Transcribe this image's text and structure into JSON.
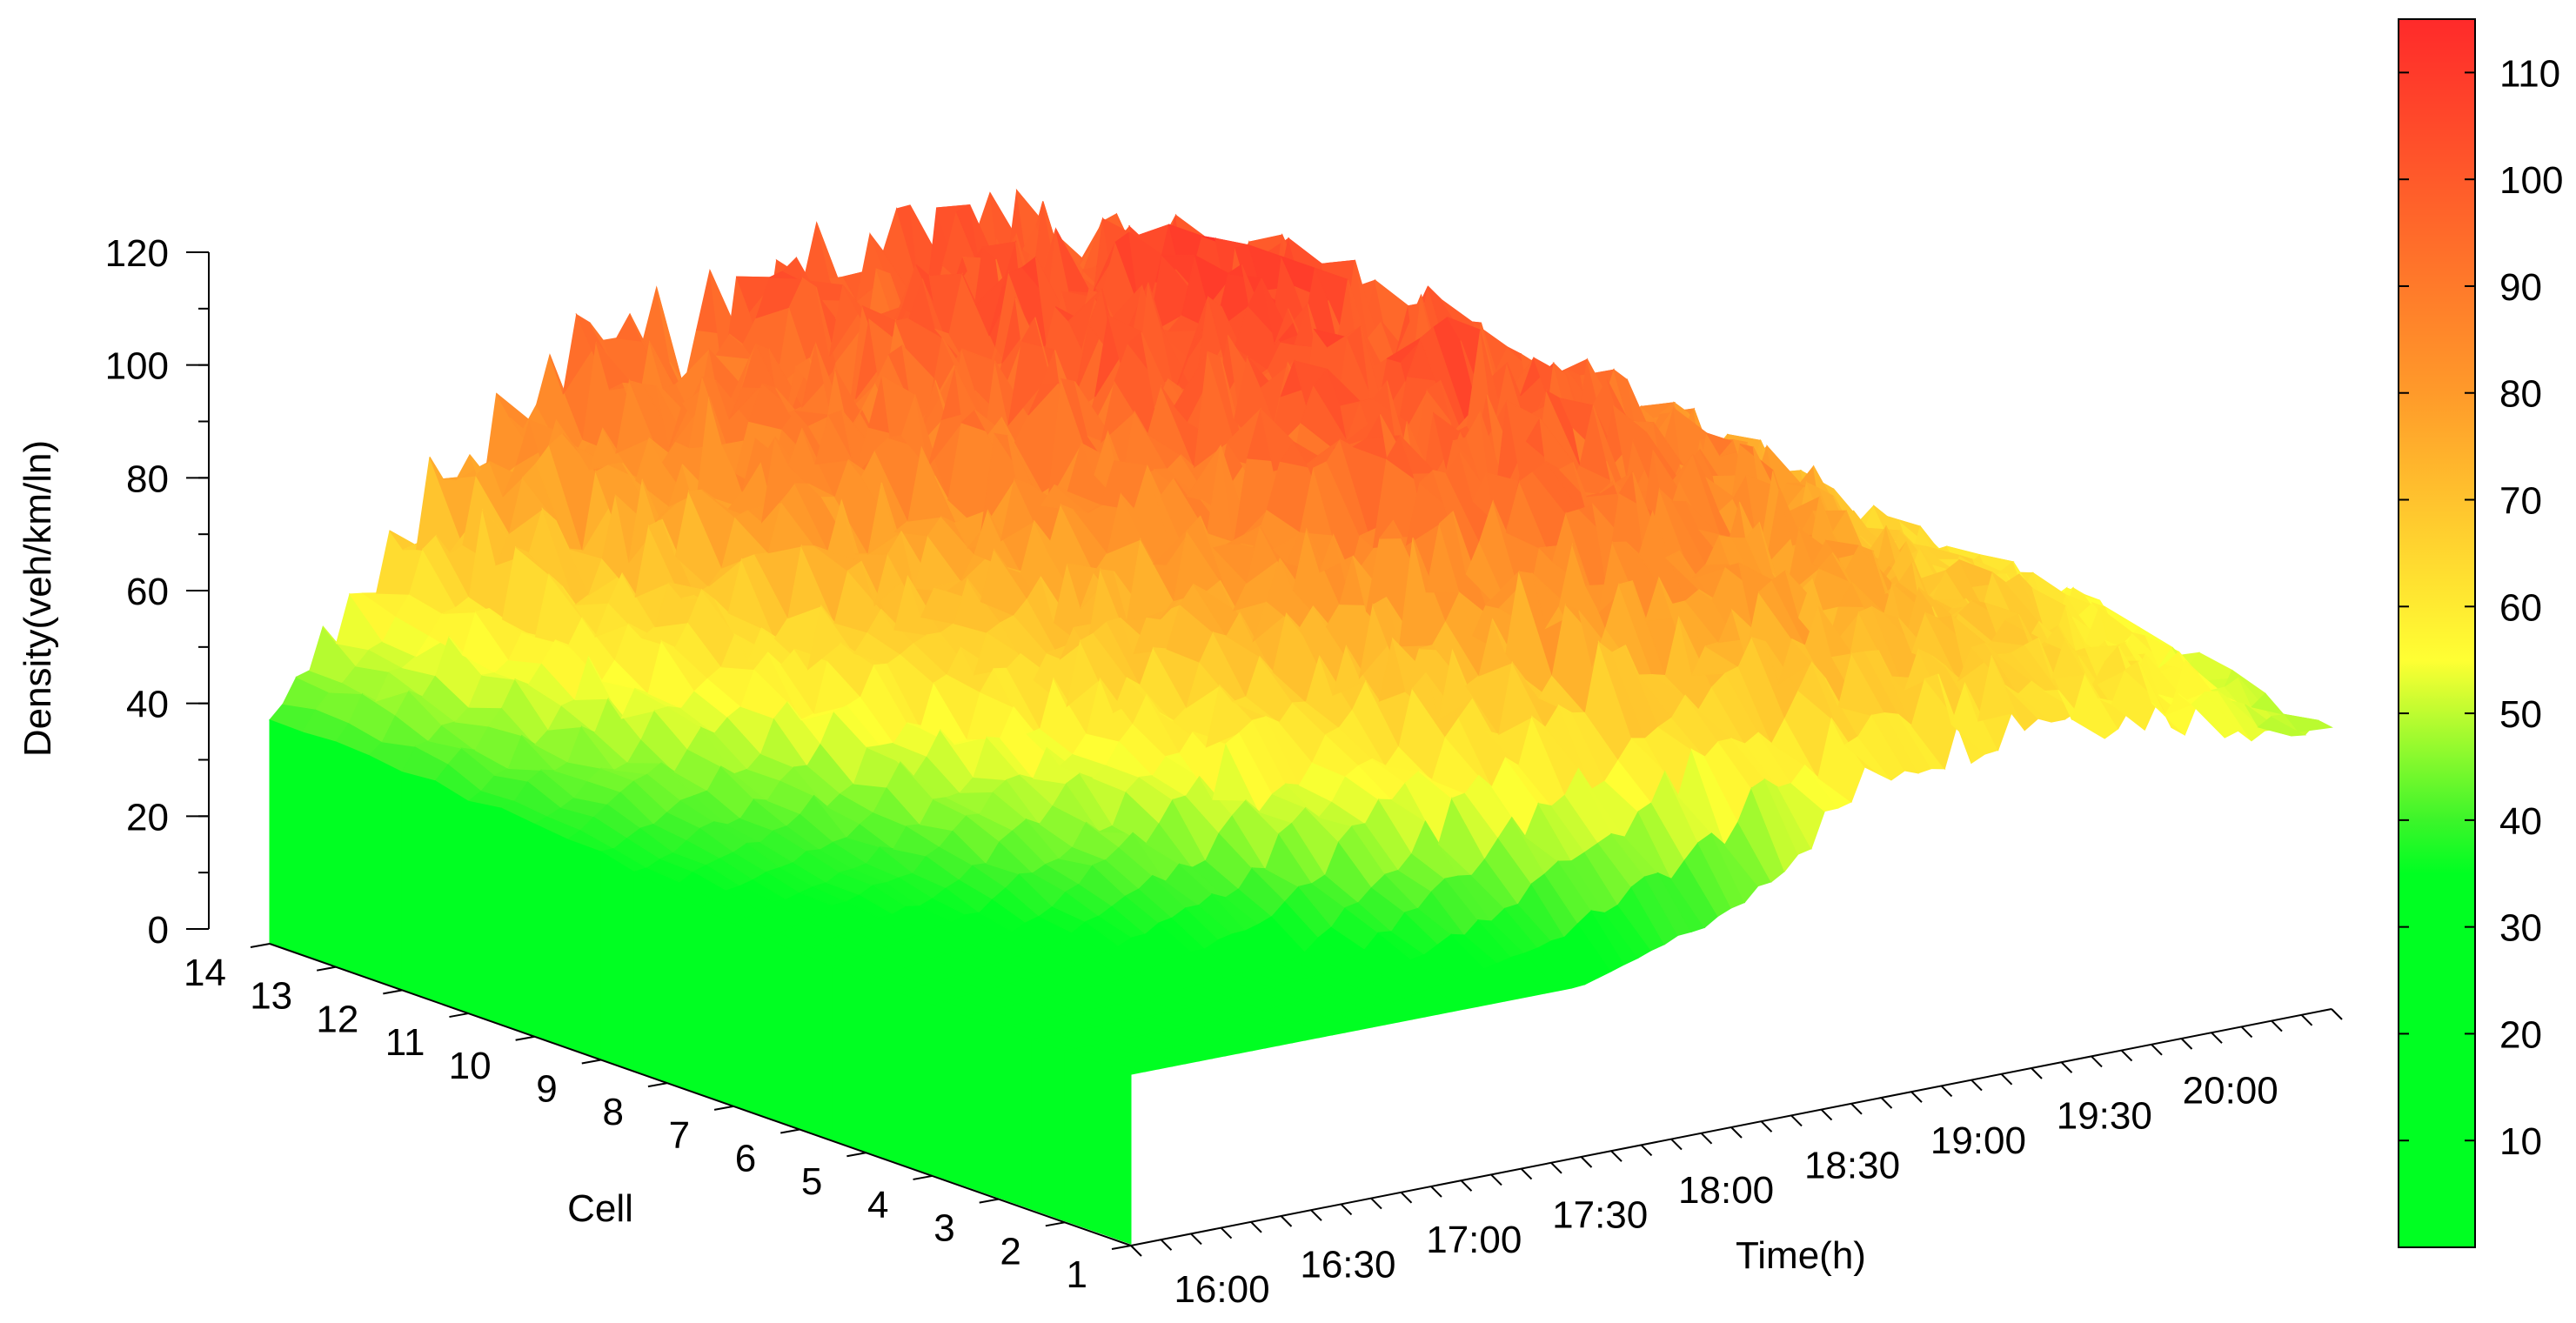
{
  "chart_data": {
    "type": "surface3d",
    "zlabel": "Density(veh/km/ln)",
    "xlabel": "Time(h)",
    "ylabel": "Cell",
    "zlim": [
      0,
      120
    ],
    "z_ticks": [
      "0",
      "20",
      "40",
      "60",
      "80",
      "100",
      "120"
    ],
    "time_ticks": [
      "16:00",
      "16:30",
      "17:00",
      "17:30",
      "18:00",
      "18:30",
      "19:00",
      "19:30",
      "20:00"
    ],
    "cell_ticks": [
      "1",
      "2",
      "3",
      "4",
      "5",
      "6",
      "7",
      "8",
      "9",
      "10",
      "11",
      "12",
      "13",
      "14"
    ],
    "colorbar": {
      "min": 0,
      "max": 115,
      "ticks": [
        "10",
        "20",
        "30",
        "40",
        "50",
        "60",
        "70",
        "80",
        "90",
        "100",
        "110"
      ],
      "colors": [
        "#00ff22",
        "#00ff22",
        "#00ff22",
        "#3cf52a",
        "#ffff33",
        "#ff9a2a",
        "#ff2a2a"
      ],
      "color_stops": [
        0,
        30,
        35,
        40,
        55,
        80,
        115
      ]
    },
    "grid": false,
    "surface_samples": {
      "times": [
        "16:00",
        "16:30",
        "17:00",
        "17:30",
        "18:00",
        "18:30",
        "19:00",
        "19:30",
        "20:00"
      ],
      "cells": [
        "1",
        "3",
        "5",
        "7",
        "9",
        "11",
        "13",
        "14"
      ],
      "density": [
        [
          30,
          30,
          30,
          30,
          38,
          58,
          63,
          58,
          48
        ],
        [
          30,
          30,
          32,
          52,
          72,
          78,
          72,
          65,
          52
        ],
        [
          30,
          34,
          48,
          68,
          88,
          92,
          82,
          70,
          55
        ],
        [
          32,
          40,
          60,
          78,
          95,
          100,
          88,
          72,
          52
        ],
        [
          36,
          48,
          70,
          85,
          100,
          104,
          90,
          70,
          50
        ],
        [
          38,
          60,
          82,
          92,
          102,
          105,
          88,
          70,
          48
        ],
        [
          40,
          70,
          88,
          94,
          98,
          100,
          85,
          68,
          45
        ],
        [
          40,
          72,
          90,
          95,
          98,
          98,
          82,
          66,
          44
        ]
      ]
    }
  }
}
